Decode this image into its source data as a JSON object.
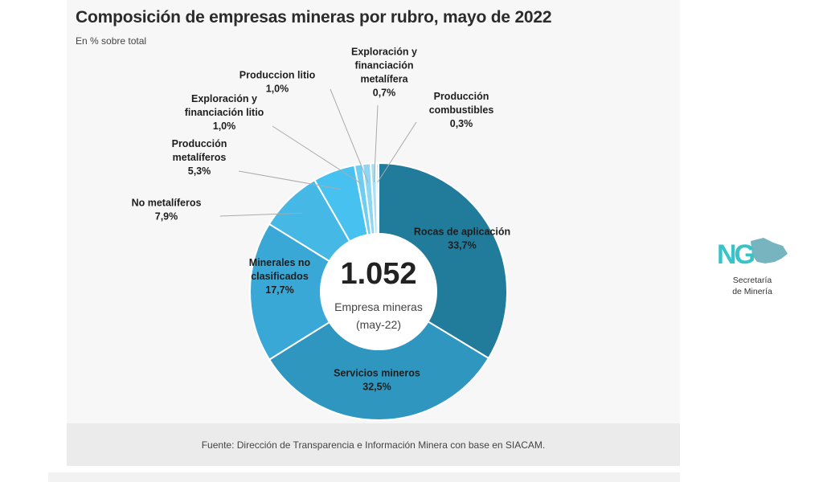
{
  "header": {
    "title": "Composición de empresas mineras por rubro, mayo de 2022",
    "subtitle": "En % sobre total"
  },
  "center": {
    "total": "1.052",
    "label_line1": "Empresa mineras",
    "label_line2": "(may-22)"
  },
  "footer": {
    "source": "Fuente: Dirección de Transparencia e Información Minera con base en SIACAM."
  },
  "logo": {
    "mark": "NG",
    "line1": "Secretaría",
    "line2": "de Minería"
  },
  "colors": {
    "rocas": "#217b9b",
    "servicios": "#2e96bf",
    "minerales": "#3aa8d6",
    "no_metaliferos": "#45b8e6",
    "metaliferos": "#47c2f0",
    "exploracion_litio": "#6dcdf3",
    "litio": "#8dd6f3",
    "exploracion_metalifera": "#a9e0f6",
    "combustibles": "#c4eaf8",
    "leader": "#aaaaaa"
  },
  "chart_data": {
    "type": "pie",
    "donut": true,
    "title": "Composición de empresas mineras por rubro, mayo de 2022",
    "subtitle": "En % sobre total",
    "unit": "%",
    "center_value": 1052,
    "slices": [
      {
        "label": "Rocas de aplicación",
        "value": 33.7,
        "value_label": "33,7%",
        "color_key": "rocas"
      },
      {
        "label": "Servicios mineros",
        "value": 32.5,
        "value_label": "32,5%",
        "color_key": "servicios"
      },
      {
        "label": "Minerales no clasificados",
        "value": 17.7,
        "value_label": "17,7%",
        "color_key": "minerales"
      },
      {
        "label": "No metalíferos",
        "value": 7.9,
        "value_label": "7,9%",
        "color_key": "no_metaliferos"
      },
      {
        "label": "Producción metalíferos",
        "value": 5.3,
        "value_label": "5,3%",
        "color_key": "metaliferos"
      },
      {
        "label": "Exploración y financiación litio",
        "value": 1.0,
        "value_label": "1,0%",
        "color_key": "exploracion_litio"
      },
      {
        "label": "Produccion litio",
        "value": 1.0,
        "value_label": "1,0%",
        "color_key": "litio"
      },
      {
        "label": "Exploración y financiación metalífera",
        "value": 0.7,
        "value_label": "0,7%",
        "color_key": "exploracion_metalifera"
      },
      {
        "label": "Producción combustibles",
        "value": 0.3,
        "value_label": "0,3%",
        "color_key": "combustibles"
      }
    ],
    "label_lines": {
      "Rocas de aplicación": [
        "Rocas de aplicación"
      ],
      "Servicios mineros": [
        "Servicios mineros"
      ],
      "Minerales no clasificados": [
        "Minerales no",
        "clasificados"
      ],
      "No metalíferos": [
        "No metalíferos"
      ],
      "Producción metalíferos": [
        "Producción",
        "metalíferos"
      ],
      "Exploración y financiación litio": [
        "Exploración y",
        "financiación litio"
      ],
      "Produccion litio": [
        "Produccion litio"
      ],
      "Exploración y financiación metalífera": [
        "Exploración y",
        "financiación",
        "metalífera"
      ],
      "Producción combustibles": [
        "Producción",
        "combustibles"
      ]
    }
  }
}
